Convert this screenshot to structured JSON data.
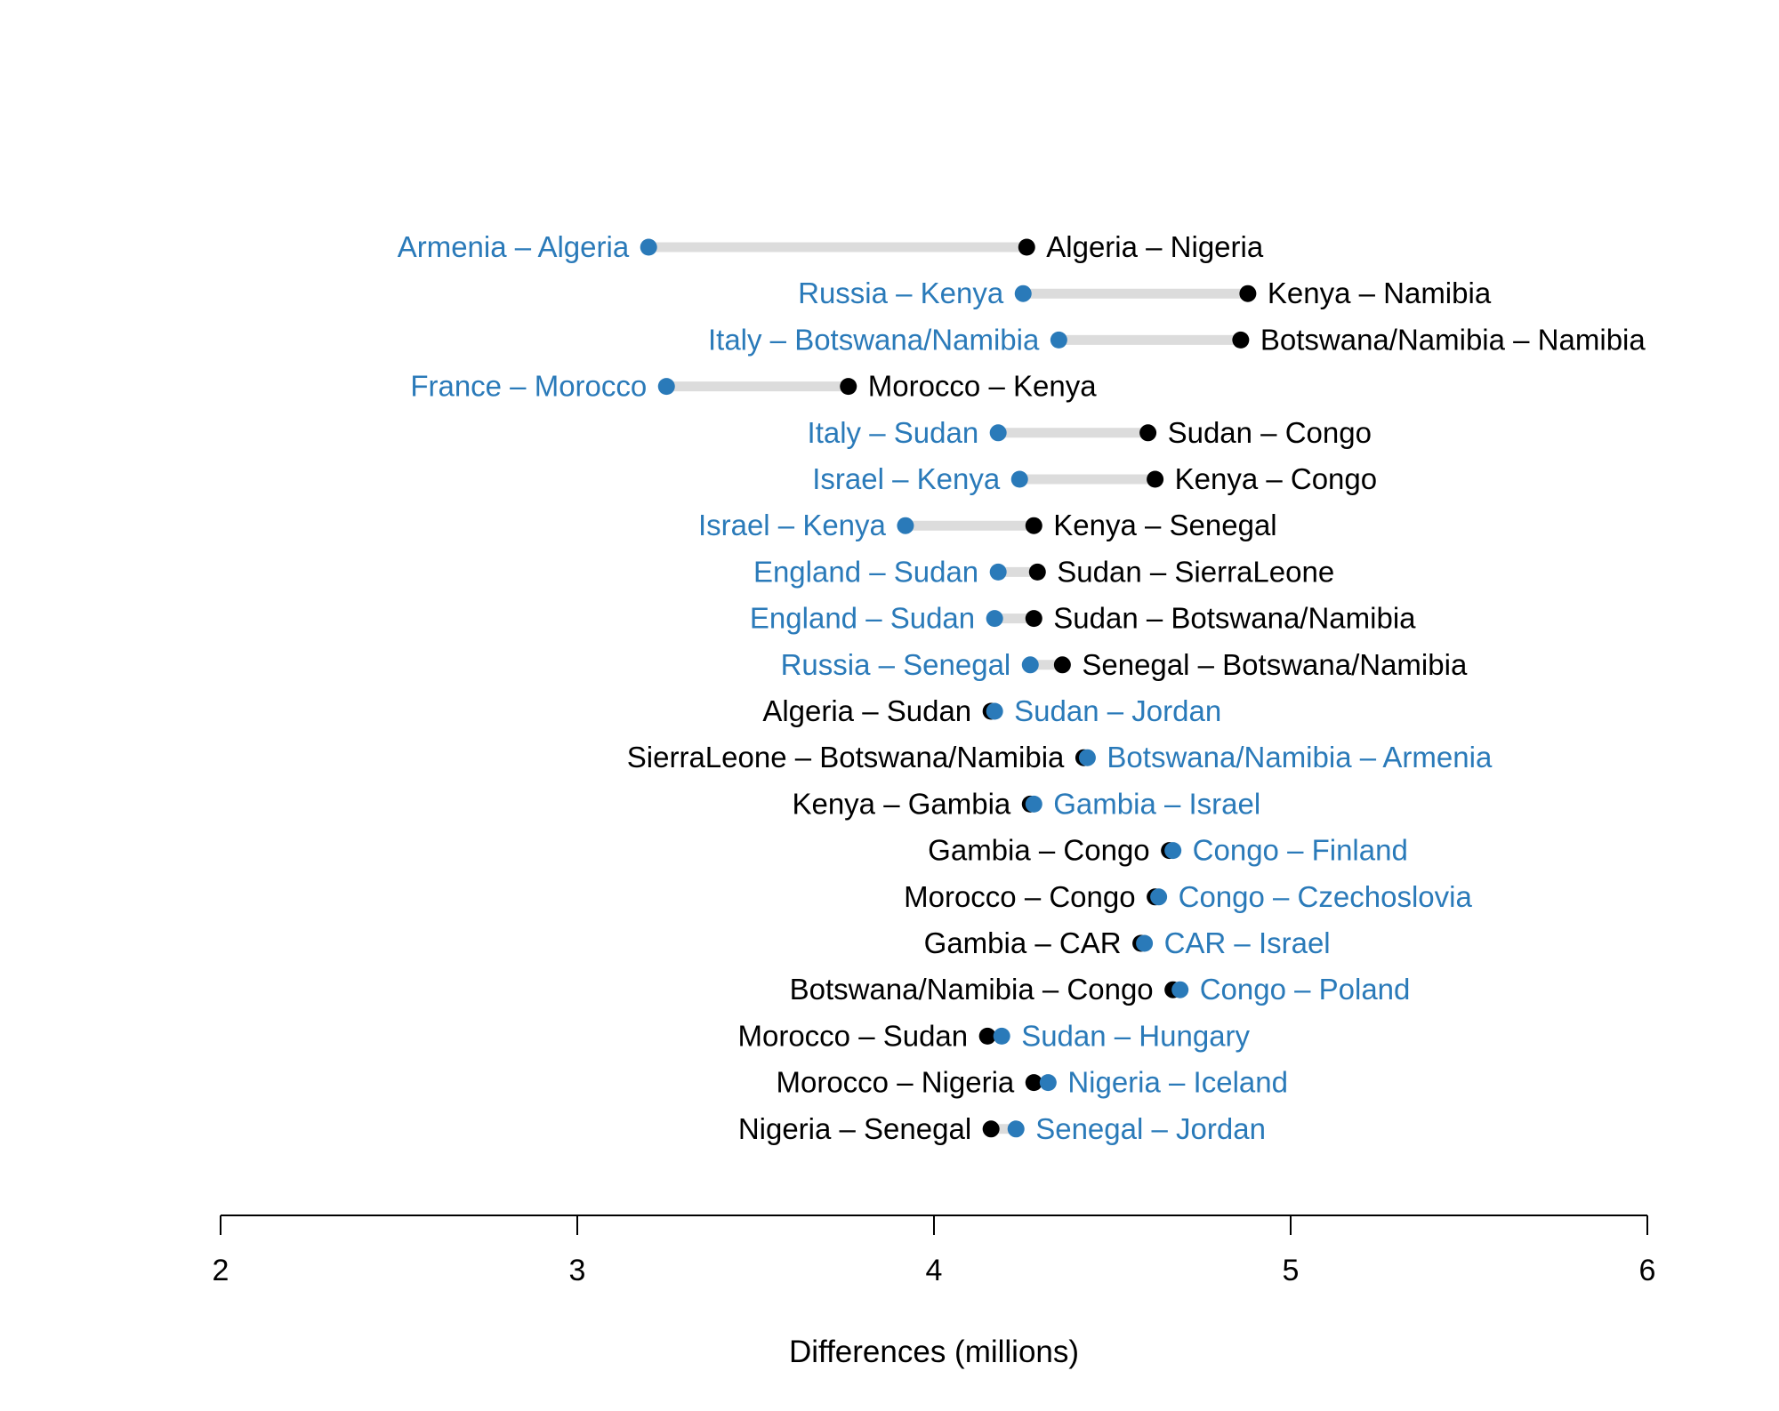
{
  "chart_data": {
    "type": "dumbbell",
    "xlabel": "Differences (millions)",
    "xlim": [
      2,
      6
    ],
    "xticks": [
      2,
      3,
      4,
      5,
      6
    ],
    "colors": {
      "blue": "#2a7ab9",
      "black": "#000000",
      "connector": "#dcdcdc"
    },
    "rows": [
      {
        "blue_label": "Armenia – Algeria",
        "blue_value": 3.2,
        "black_label": "Algeria – Nigeria",
        "black_value": 4.26
      },
      {
        "blue_label": "Russia – Kenya",
        "blue_value": 4.25,
        "black_label": "Kenya – Namibia",
        "black_value": 4.88
      },
      {
        "blue_label": "Italy – Botswana/Namibia",
        "blue_value": 4.35,
        "black_label": "Botswana/Namibia – Namibia",
        "black_value": 4.86
      },
      {
        "blue_label": "France – Morocco",
        "blue_value": 3.25,
        "black_label": "Morocco – Kenya",
        "black_value": 3.76
      },
      {
        "blue_label": "Italy – Sudan",
        "blue_value": 4.18,
        "black_label": "Sudan – Congo",
        "black_value": 4.6
      },
      {
        "blue_label": "Israel – Kenya",
        "blue_value": 4.24,
        "black_label": "Kenya – Congo",
        "black_value": 4.62
      },
      {
        "blue_label": "Israel – Kenya",
        "blue_value": 3.92,
        "black_label": "Kenya – Senegal",
        "black_value": 4.28
      },
      {
        "blue_label": "England – Sudan",
        "blue_value": 4.18,
        "black_label": "Sudan – SierraLeone",
        "black_value": 4.29
      },
      {
        "blue_label": "England – Sudan",
        "blue_value": 4.17,
        "black_label": "Sudan – Botswana/Namibia",
        "black_value": 4.28
      },
      {
        "blue_label": "Russia – Senegal",
        "blue_value": 4.27,
        "black_label": "Senegal – Botswana/Namibia",
        "black_value": 4.36
      },
      {
        "blue_label": "Sudan – Jordan",
        "blue_value": 4.17,
        "black_label": "Algeria – Sudan",
        "black_value": 4.16
      },
      {
        "blue_label": "Botswana/Namibia – Armenia",
        "blue_value": 4.43,
        "black_label": "SierraLeone – Botswana/Namibia",
        "black_value": 4.42
      },
      {
        "blue_label": "Gambia – Israel",
        "blue_value": 4.28,
        "black_label": "Kenya – Gambia",
        "black_value": 4.27
      },
      {
        "blue_label": "Congo – Finland",
        "blue_value": 4.67,
        "black_label": "Gambia – Congo",
        "black_value": 4.66
      },
      {
        "blue_label": "Congo – Czechoslovia",
        "blue_value": 4.63,
        "black_label": "Morocco – Congo",
        "black_value": 4.62
      },
      {
        "blue_label": "CAR – Israel",
        "blue_value": 4.59,
        "black_label": "Gambia – CAR",
        "black_value": 4.58
      },
      {
        "blue_label": "Congo – Poland",
        "blue_value": 4.69,
        "black_label": "Botswana/Namibia – Congo",
        "black_value": 4.67
      },
      {
        "blue_label": "Sudan – Hungary",
        "blue_value": 4.19,
        "black_label": "Morocco – Sudan",
        "black_value": 4.15
      },
      {
        "blue_label": "Nigeria – Iceland",
        "blue_value": 4.32,
        "black_label": "Morocco – Nigeria",
        "black_value": 4.28
      },
      {
        "blue_label": "Senegal – Jordan",
        "blue_value": 4.23,
        "black_label": "Nigeria – Senegal",
        "black_value": 4.16
      }
    ]
  }
}
